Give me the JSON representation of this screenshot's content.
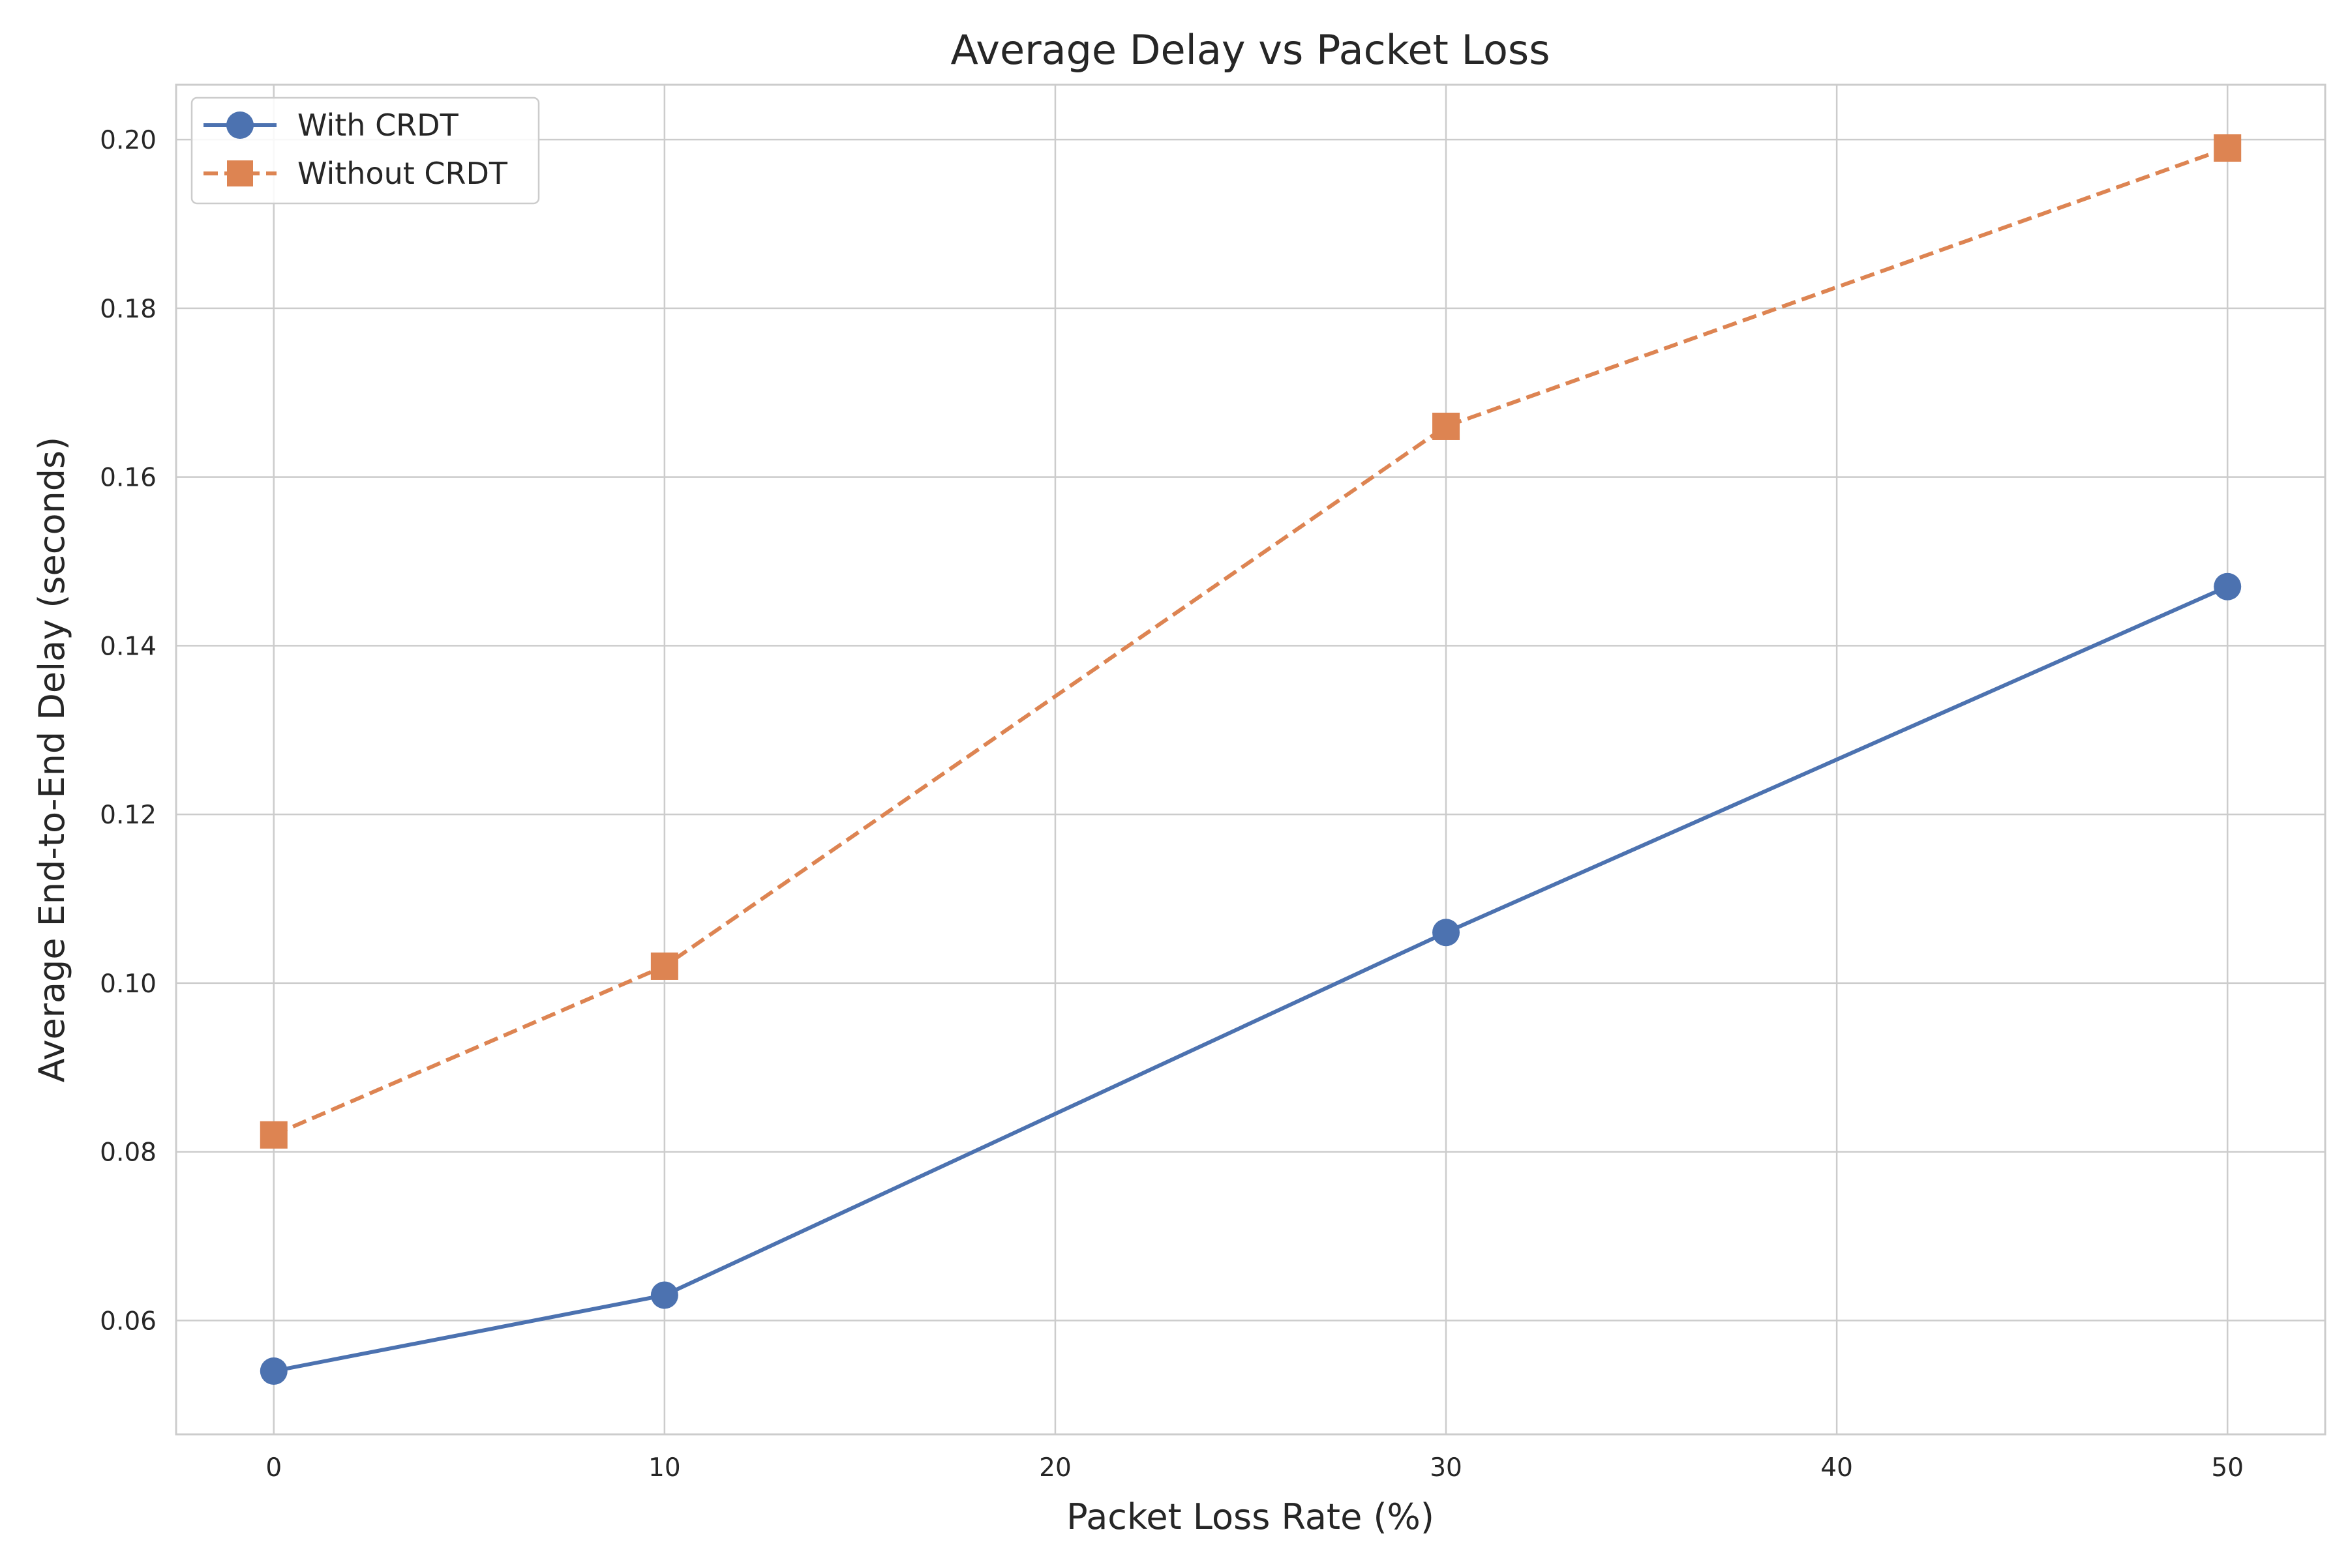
{
  "chart_data": {
    "type": "line",
    "title": "Average Delay vs Packet Loss",
    "xlabel": "Packet Loss Rate (%)",
    "ylabel": "Average End-to-End Delay (seconds)",
    "xlim": [
      -2.5,
      52.5
    ],
    "ylim": [
      0.0465,
      0.2065
    ],
    "xticks": [
      "0",
      "10",
      "20",
      "30",
      "40",
      "50"
    ],
    "yticks": [
      "0.06",
      "0.08",
      "0.10",
      "0.12",
      "0.14",
      "0.16",
      "0.18",
      "0.20"
    ],
    "grid": true,
    "legend_position": "top-left",
    "x": [
      0,
      10,
      30,
      50
    ],
    "series": [
      {
        "name": "With CRDT",
        "values": [
          0.054,
          0.063,
          0.106,
          0.147
        ],
        "color": "#4c72b0",
        "marker": "circle",
        "line_style": "solid"
      },
      {
        "name": "Without CRDT",
        "values": [
          0.082,
          0.102,
          0.166,
          0.199
        ],
        "color": "#dd8452",
        "marker": "square",
        "line_style": "dashed"
      }
    ]
  }
}
